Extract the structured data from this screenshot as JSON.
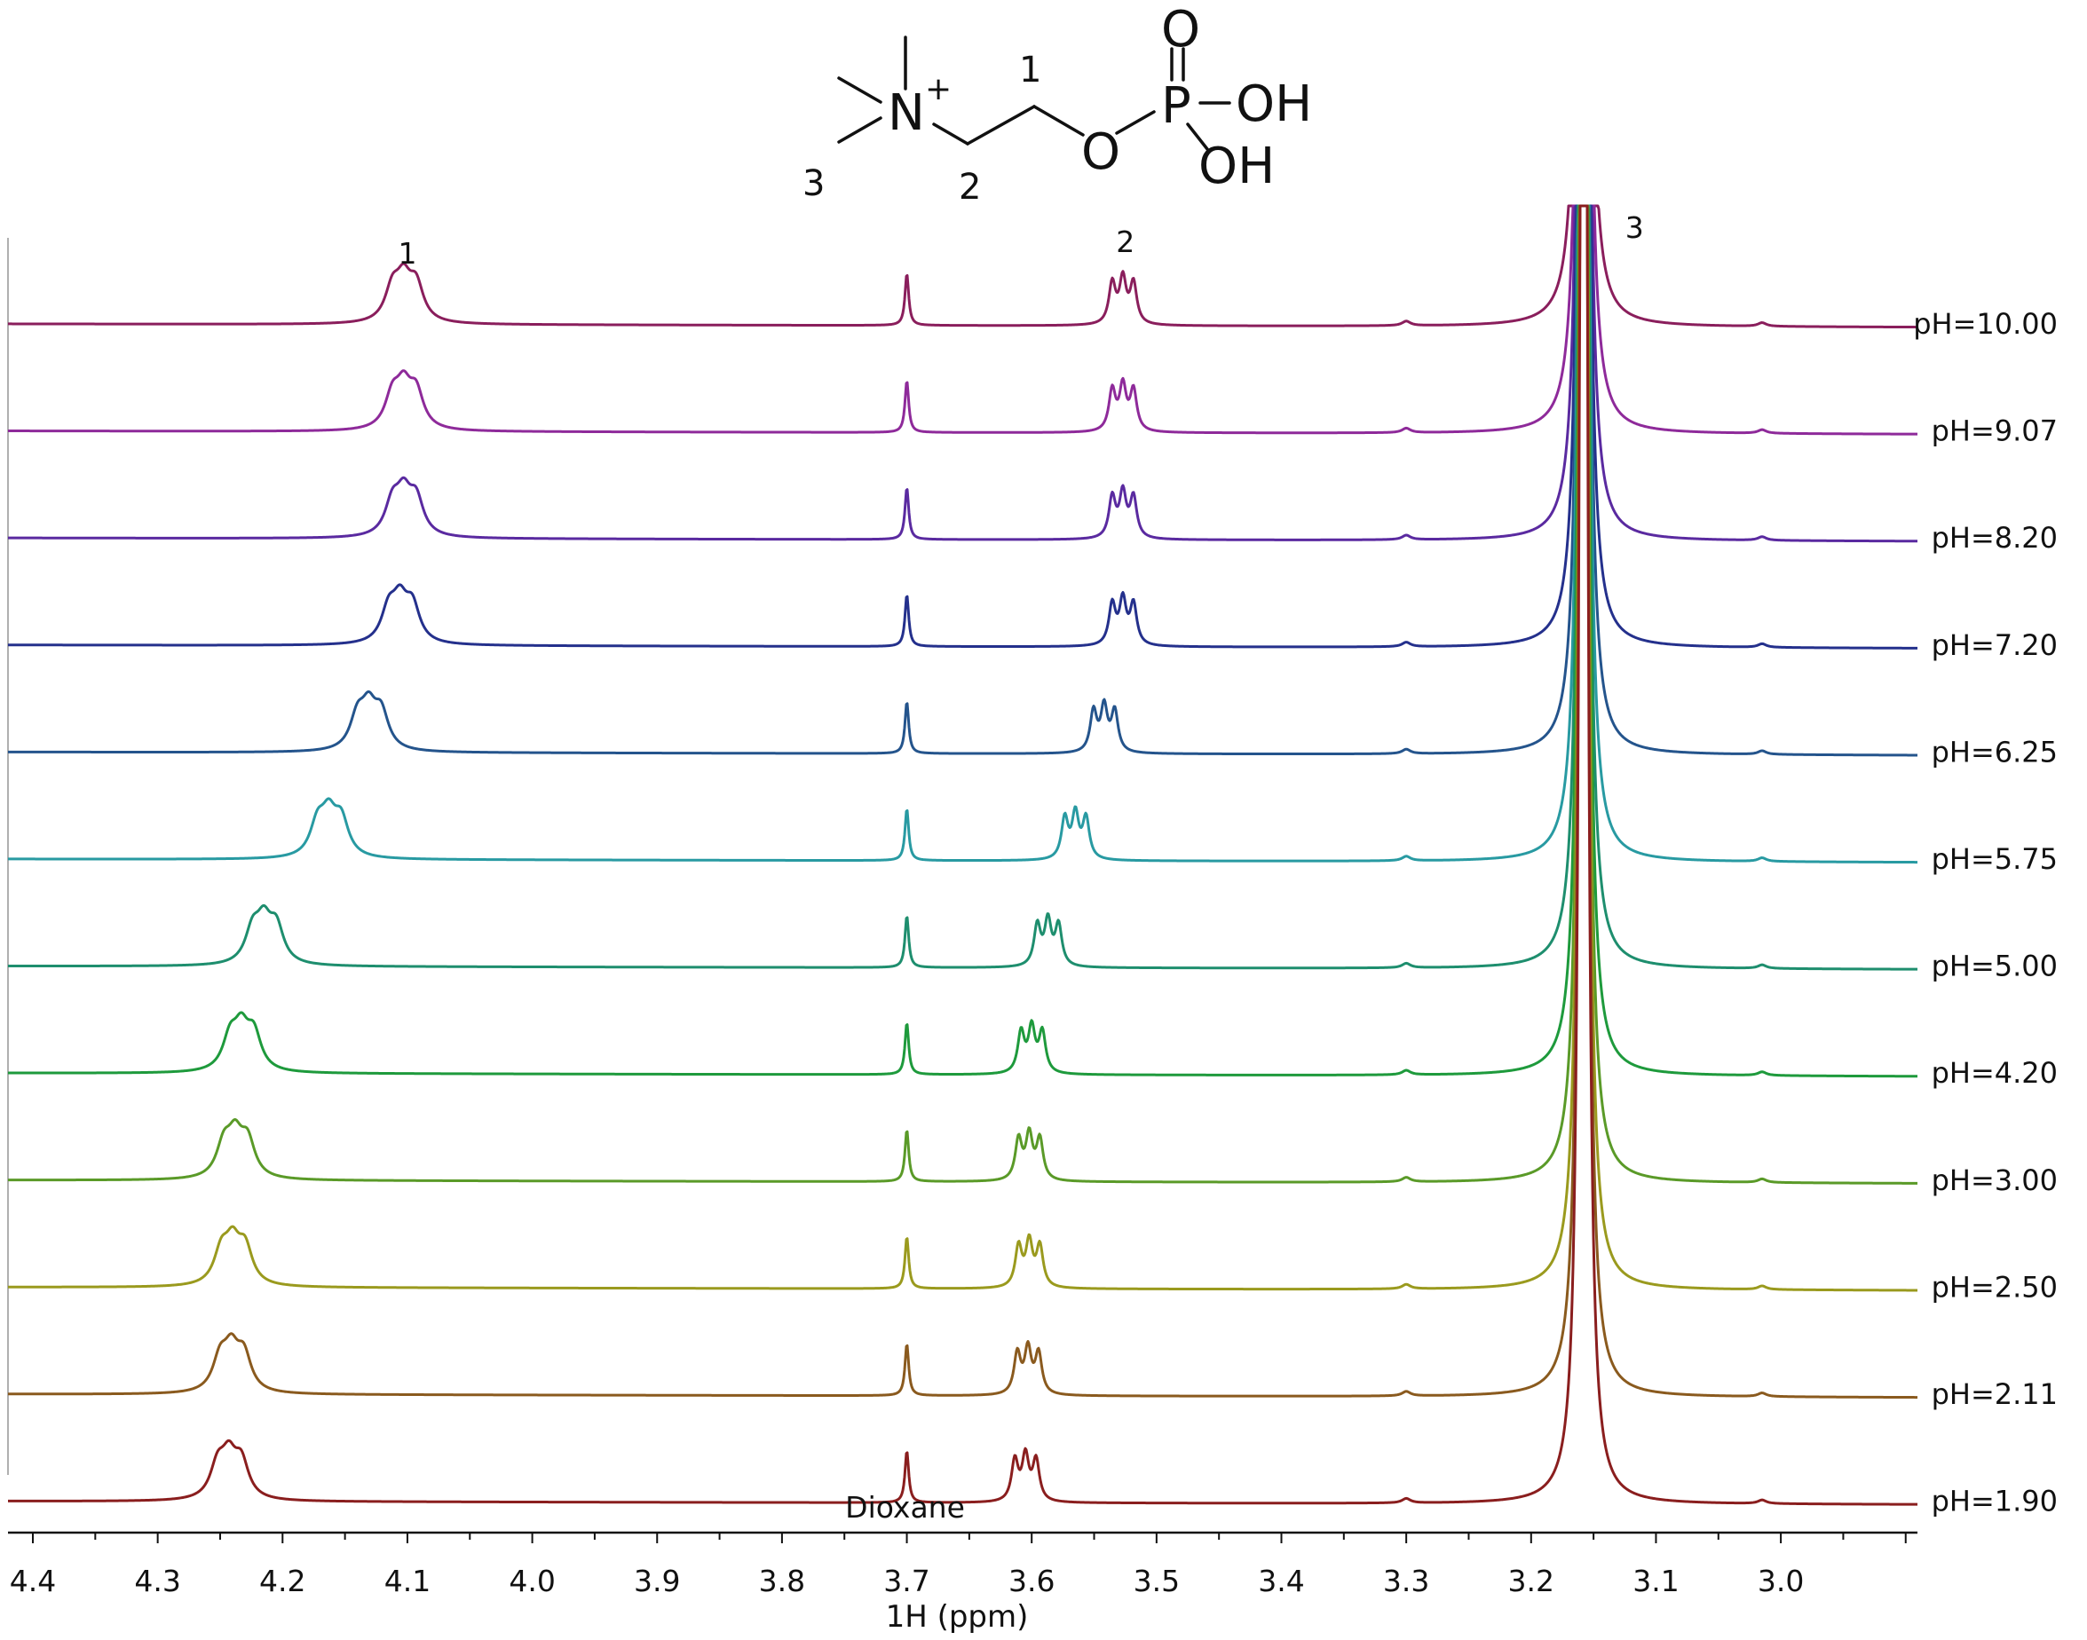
{
  "structure": {
    "atoms": {
      "nitrogen": "N",
      "charge": "+",
      "oxygen_ester": "O",
      "phosphorus": "P",
      "oxygen_double": "O",
      "hydroxyl_1": "OH",
      "hydroxyl_2": "OH"
    },
    "position_labels": [
      "1",
      "2",
      "3"
    ]
  },
  "chart_data": {
    "type": "line",
    "title": "",
    "xlabel": "1H (ppm)",
    "ylabel": "",
    "xlim": [
      4.42,
      2.92
    ],
    "x_reversed": true,
    "x_ticks": [
      4.4,
      4.3,
      4.2,
      4.1,
      4.0,
      3.9,
      3.8,
      3.7,
      3.6,
      3.5,
      3.4,
      3.3,
      3.2,
      3.1,
      3.0
    ],
    "x_tick_labels": [
      "4.4",
      "4.3",
      "4.2",
      "4.1",
      "4.0",
      "3.9",
      "3.8",
      "3.7",
      "3.6",
      "3.5",
      "3.4",
      "3.3",
      "3.2",
      "3.1",
      "3.0"
    ],
    "grid": false,
    "stacked": true,
    "peak_labels": [
      {
        "text": "1",
        "ppm": 4.1
      },
      {
        "text": "2",
        "ppm": 3.525
      },
      {
        "text": "3",
        "ppm": 3.13
      }
    ],
    "annotations": [
      {
        "text": "Dioxane",
        "ppm": 3.7
      }
    ],
    "series": [
      {
        "label": "pH=10.00",
        "color": "#8a1e5c",
        "peak1_ppm": 4.1,
        "peak2_ppm": 3.527
      },
      {
        "label": "pH=9.07",
        "color": "#8e2a9a",
        "peak1_ppm": 4.1,
        "peak2_ppm": 3.527
      },
      {
        "label": "pH=8.20",
        "color": "#5a2aa0",
        "peak1_ppm": 4.1,
        "peak2_ppm": 3.527
      },
      {
        "label": "pH=7.20",
        "color": "#24308c",
        "peak1_ppm": 4.103,
        "peak2_ppm": 3.527
      },
      {
        "label": "pH=6.25",
        "color": "#24548c",
        "peak1_ppm": 4.128,
        "peak2_ppm": 3.542
      },
      {
        "label": "pH=5.75",
        "color": "#289aa2",
        "peak1_ppm": 4.16,
        "peak2_ppm": 3.565
      },
      {
        "label": "pH=5.00",
        "color": "#1e8e6e",
        "peak1_ppm": 4.212,
        "peak2_ppm": 3.587
      },
      {
        "label": "pH=4.20",
        "color": "#1e9a3c",
        "peak1_ppm": 4.23,
        "peak2_ppm": 3.6
      },
      {
        "label": "pH=3.00",
        "color": "#5a9a28",
        "peak1_ppm": 4.235,
        "peak2_ppm": 3.602
      },
      {
        "label": "pH=2.50",
        "color": "#9a9a1e",
        "peak1_ppm": 4.237,
        "peak2_ppm": 3.602
      },
      {
        "label": "pH=2.11",
        "color": "#8a5a1e",
        "peak1_ppm": 4.238,
        "peak2_ppm": 3.603
      },
      {
        "label": "pH=1.90",
        "color": "#8a1e1e",
        "peak1_ppm": 4.24,
        "peak2_ppm": 3.605
      }
    ]
  }
}
